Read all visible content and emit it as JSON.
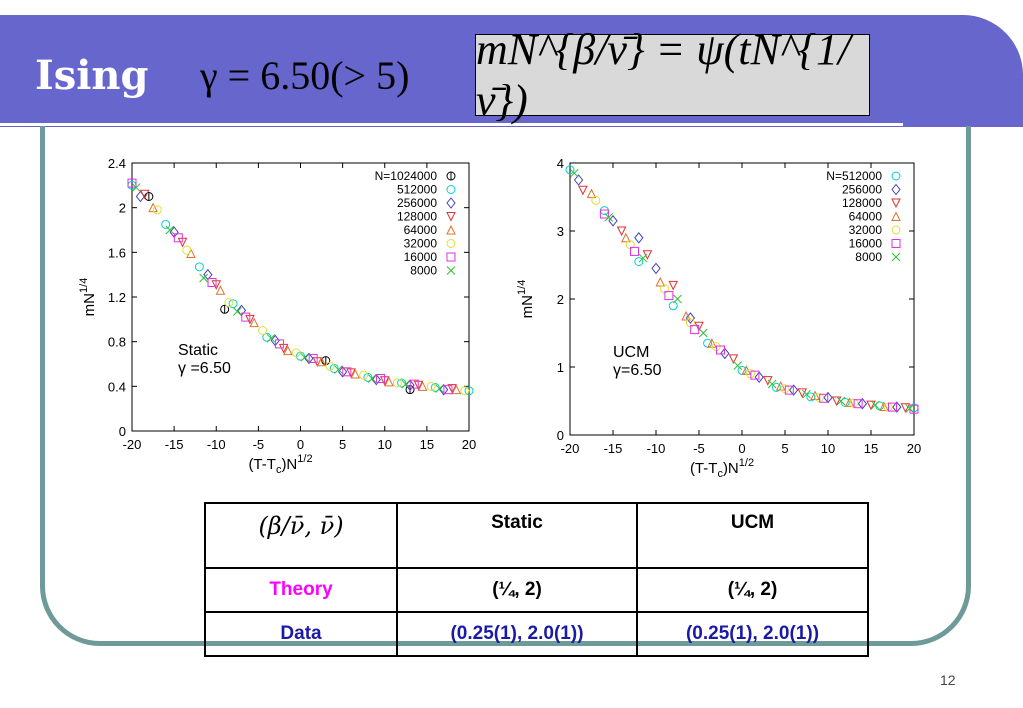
{
  "slide": {
    "title": "Ising",
    "gamma_eq": "γ = 6.50(> 5)",
    "formula": "mN^{β/ν̄} = ψ(tN^{1/ν̄})",
    "page_number": "12"
  },
  "chart_data": [
    {
      "type": "scatter",
      "id": "static",
      "xlabel": "(T-Tc)N1/2",
      "ylabel": "mN1/4",
      "xlim": [
        -20,
        20
      ],
      "ylim": [
        0,
        2.4
      ],
      "xticks": [
        -20,
        -15,
        -10,
        -5,
        0,
        5,
        10,
        15,
        20
      ],
      "yticks": [
        0,
        0.4,
        0.8,
        1.2,
        1.6,
        2,
        2.4
      ],
      "ytick_labels": [
        "0",
        "0.4",
        "0.8",
        "1.2",
        "1.6",
        "2",
        "2.4"
      ],
      "annotation": [
        "Static",
        "γ =6.50"
      ],
      "legend_position": "top-right",
      "series": [
        {
          "name": "N=1024000",
          "color": "#000000",
          "marker": "circle-plus",
          "x": [
            -18,
            -9,
            3,
            13
          ],
          "y": [
            2.1,
            1.09,
            0.63,
            0.37
          ]
        },
        {
          "name": "512000",
          "color": "#00d0d0",
          "marker": "circle",
          "x": [
            -20,
            -16,
            -12,
            -8,
            -4,
            0,
            4,
            8,
            12,
            16,
            20
          ],
          "y": [
            2.2,
            1.85,
            1.47,
            1.14,
            0.84,
            0.67,
            0.56,
            0.48,
            0.43,
            0.39,
            0.36
          ]
        },
        {
          "name": "256000",
          "color": "#4040c0",
          "marker": "diamond",
          "x": [
            -19,
            -15,
            -11,
            -7,
            -3,
            1,
            5,
            9,
            13,
            17
          ],
          "y": [
            2.1,
            1.78,
            1.4,
            1.08,
            0.81,
            0.65,
            0.53,
            0.46,
            0.41,
            0.37
          ]
        },
        {
          "name": "128000",
          "color": "#e03030",
          "marker": "triangle-down",
          "x": [
            -18.5,
            -14,
            -10,
            -6,
            -2,
            2,
            6,
            10,
            14,
            18
          ],
          "y": [
            2.12,
            1.69,
            1.31,
            1.0,
            0.74,
            0.62,
            0.52,
            0.45,
            0.41,
            0.38
          ]
        },
        {
          "name": "64000",
          "color": "#e07030",
          "marker": "triangle-up",
          "x": [
            -17.5,
            -13,
            -9.5,
            -5.5,
            -1.5,
            2.5,
            6.5,
            10.5,
            14.5,
            18.5
          ],
          "y": [
            2.0,
            1.59,
            1.26,
            0.97,
            0.72,
            0.62,
            0.51,
            0.44,
            0.4,
            0.37
          ]
        },
        {
          "name": "32000",
          "color": "#e0e030",
          "marker": "circle",
          "x": [
            -17,
            -13.5,
            -8.5,
            -4.5,
            -0.5,
            3.5,
            7.5,
            11.5,
            15.5,
            19.5
          ],
          "y": [
            1.98,
            1.62,
            1.15,
            0.9,
            0.7,
            0.58,
            0.5,
            0.43,
            0.4,
            0.36
          ]
        },
        {
          "name": "16000",
          "color": "#e030e0",
          "marker": "square",
          "x": [
            -20,
            -14.5,
            -10.5,
            -6.5,
            -2.5,
            1.5,
            5.5,
            9.5,
            13.5,
            17.5
          ],
          "y": [
            2.22,
            1.73,
            1.33,
            1.02,
            0.78,
            0.65,
            0.53,
            0.47,
            0.42,
            0.37
          ]
        },
        {
          "name": "8000",
          "color": "#30c030",
          "marker": "cross",
          "x": [
            -19.5,
            -15.5,
            -11.5,
            -7.5,
            -3.5,
            0.5,
            4.5,
            8.5,
            12.5,
            16.5
          ],
          "y": [
            2.18,
            1.8,
            1.37,
            1.07,
            0.83,
            0.66,
            0.55,
            0.47,
            0.42,
            0.38
          ]
        }
      ]
    },
    {
      "type": "scatter",
      "id": "ucm",
      "xlabel": "(T-Tc)N1/2",
      "ylabel": "mN1/4",
      "xlim": [
        -20,
        20
      ],
      "ylim": [
        0,
        4
      ],
      "xticks": [
        -20,
        -15,
        -10,
        -5,
        0,
        5,
        10,
        15,
        20
      ],
      "yticks": [
        0,
        1,
        2,
        3,
        4
      ],
      "ytick_labels": [
        "0",
        "1",
        "2",
        "3",
        "4"
      ],
      "annotation": [
        "UCM",
        "γ=6.50"
      ],
      "legend_position": "top-right",
      "series": [
        {
          "name": "N=512000",
          "color": "#00d0d0",
          "marker": "circle",
          "x": [
            -20,
            -16,
            -12,
            -8,
            -4,
            0,
            4,
            8,
            12,
            16,
            20
          ],
          "y": [
            3.9,
            3.3,
            2.55,
            1.9,
            1.35,
            0.95,
            0.7,
            0.56,
            0.48,
            0.43,
            0.4
          ]
        },
        {
          "name": "256000",
          "color": "#4040c0",
          "marker": "diamond",
          "x": [
            -19,
            -15,
            -12,
            -10,
            -6,
            -2,
            2,
            6,
            10,
            14,
            18
          ],
          "y": [
            3.75,
            3.15,
            2.9,
            2.45,
            1.72,
            1.2,
            0.85,
            0.66,
            0.55,
            0.46,
            0.41
          ]
        },
        {
          "name": "128000",
          "color": "#e03030",
          "marker": "triangle-down",
          "x": [
            -18.5,
            -14,
            -11,
            -8,
            -5,
            -1,
            3,
            7,
            11,
            15,
            19
          ],
          "y": [
            3.6,
            3.0,
            2.65,
            2.2,
            1.6,
            1.12,
            0.8,
            0.62,
            0.5,
            0.44,
            0.4
          ]
        },
        {
          "name": "64000",
          "color": "#e07030",
          "marker": "triangle-up",
          "x": [
            -17.5,
            -13.5,
            -9.5,
            -6.5,
            -3.5,
            0.5,
            4.5,
            8.5,
            12.5,
            16.5
          ],
          "y": [
            3.55,
            2.9,
            2.25,
            1.75,
            1.35,
            0.95,
            0.72,
            0.58,
            0.48,
            0.42
          ]
        },
        {
          "name": "32000",
          "color": "#e0e030",
          "marker": "circle",
          "x": [
            -17,
            -13,
            -9,
            -6,
            -3,
            1,
            5,
            9,
            13,
            17
          ],
          "y": [
            3.45,
            2.8,
            2.15,
            1.65,
            1.3,
            0.9,
            0.68,
            0.55,
            0.47,
            0.41
          ]
        },
        {
          "name": "16000",
          "color": "#e030e0",
          "marker": "square",
          "x": [
            -16,
            -12.5,
            -8.5,
            -5.5,
            -2.5,
            1.5,
            5.5,
            9.5,
            13.5,
            17.5,
            20
          ],
          "y": [
            3.25,
            2.7,
            2.05,
            1.55,
            1.25,
            0.88,
            0.66,
            0.54,
            0.46,
            0.41,
            0.38
          ]
        },
        {
          "name": "8000",
          "color": "#30c030",
          "marker": "cross",
          "x": [
            -19.5,
            -15.5,
            -11.5,
            -7.5,
            -4.5,
            -0.5,
            3.5,
            7.5,
            11.5,
            15.5,
            19.5
          ],
          "y": [
            3.85,
            3.2,
            2.6,
            2.0,
            1.5,
            1.02,
            0.75,
            0.6,
            0.5,
            0.44,
            0.39
          ]
        }
      ]
    }
  ],
  "table": {
    "header_params": "(β/ν̄,  ν̄)",
    "header_static": "Static",
    "header_ucm": "UCM",
    "rows": [
      {
        "label": "Theory",
        "static": "(¼, 2)",
        "ucm": "(¼, 2)"
      },
      {
        "label": "Data",
        "static": "(0.25(1), 2.0(1))",
        "ucm": "(0.25(1), 2.0(1))"
      }
    ]
  }
}
